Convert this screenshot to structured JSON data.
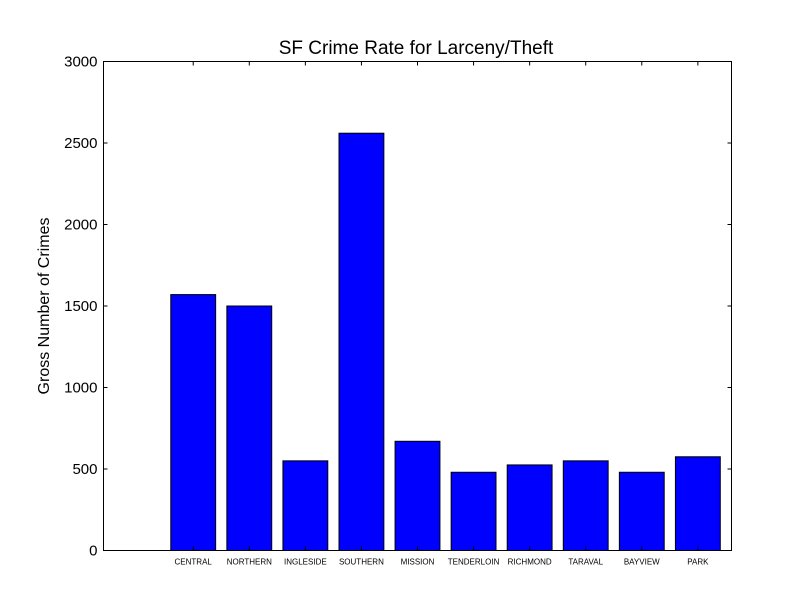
{
  "chart_data": {
    "type": "bar",
    "title": "SF Crime Rate for Larceny/Theft",
    "xlabel": "",
    "ylabel": "Gross Number of Crimes",
    "categories": [
      "CENTRAL",
      "NORTHERN",
      "INGLESIDE",
      "SOUTHERN",
      "MISSION",
      "TENDERLOIN",
      "RICHMOND",
      "TARAVAL",
      "BAYVIEW",
      "PARK"
    ],
    "values": [
      1570,
      1500,
      550,
      2560,
      670,
      480,
      525,
      550,
      480,
      575
    ],
    "ylim": [
      0,
      3000
    ],
    "yticks": [
      0,
      500,
      1000,
      1500,
      2000,
      2500,
      3000
    ],
    "grid": false,
    "legend": "none",
    "bar_color": "#0000ff",
    "edge_color": "#000000"
  }
}
